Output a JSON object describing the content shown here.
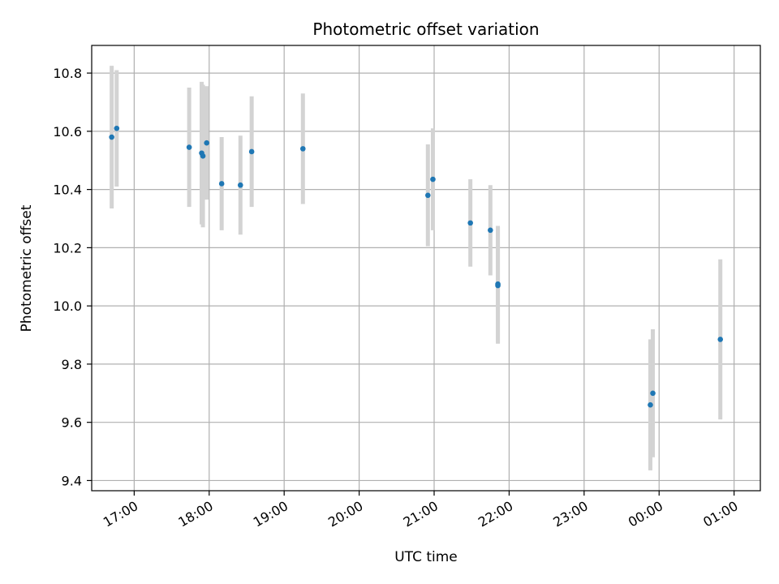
{
  "chart_data": {
    "type": "scatter",
    "title": "Photometric offset variation",
    "xlabel": "UTC time",
    "ylabel": "Photometric offset",
    "grid": true,
    "x_ticks": [
      "17:00",
      "18:00",
      "19:00",
      "20:00",
      "21:00",
      "22:00",
      "23:00",
      "00:00",
      "01:00"
    ],
    "y_ticks": [
      "9.4",
      "9.6",
      "9.8",
      "10.0",
      "10.2",
      "10.4",
      "10.6",
      "10.8"
    ],
    "xlim": [
      "16:26",
      "01:21"
    ],
    "ylim": [
      9.365,
      10.895
    ],
    "point_color": "#1f77b4",
    "errorbar_color": "#d3d3d3",
    "points": [
      {
        "time": "16:42",
        "y": 10.58,
        "err": 0.245
      },
      {
        "time": "16:46",
        "y": 10.61,
        "err": 0.2
      },
      {
        "time": "17:44",
        "y": 10.545,
        "err": 0.205
      },
      {
        "time": "17:54",
        "y": 10.525,
        "err": 0.245
      },
      {
        "time": "17:55",
        "y": 10.515,
        "err": 0.245
      },
      {
        "time": "17:58",
        "y": 10.56,
        "err": 0.195
      },
      {
        "time": "18:10",
        "y": 10.42,
        "err": 0.16
      },
      {
        "time": "18:25",
        "y": 10.415,
        "err": 0.17
      },
      {
        "time": "18:34",
        "y": 10.53,
        "err": 0.19
      },
      {
        "time": "19:15",
        "y": 10.54,
        "err": 0.19
      },
      {
        "time": "20:55",
        "y": 10.38,
        "err": 0.175
      },
      {
        "time": "20:59",
        "y": 10.435,
        "err": 0.175
      },
      {
        "time": "21:29",
        "y": 10.285,
        "err": 0.15
      },
      {
        "time": "21:45",
        "y": 10.26,
        "err": 0.155
      },
      {
        "time": "21:51",
        "y": 10.075,
        "err": 0.2
      },
      {
        "time": "21:51",
        "y": 10.07,
        "err": 0.2
      },
      {
        "time": "23:53",
        "y": 9.66,
        "err": 0.225
      },
      {
        "time": "23:55",
        "y": 9.7,
        "err": 0.22
      },
      {
        "time": "00:49",
        "y": 9.885,
        "err": 0.275
      }
    ]
  }
}
